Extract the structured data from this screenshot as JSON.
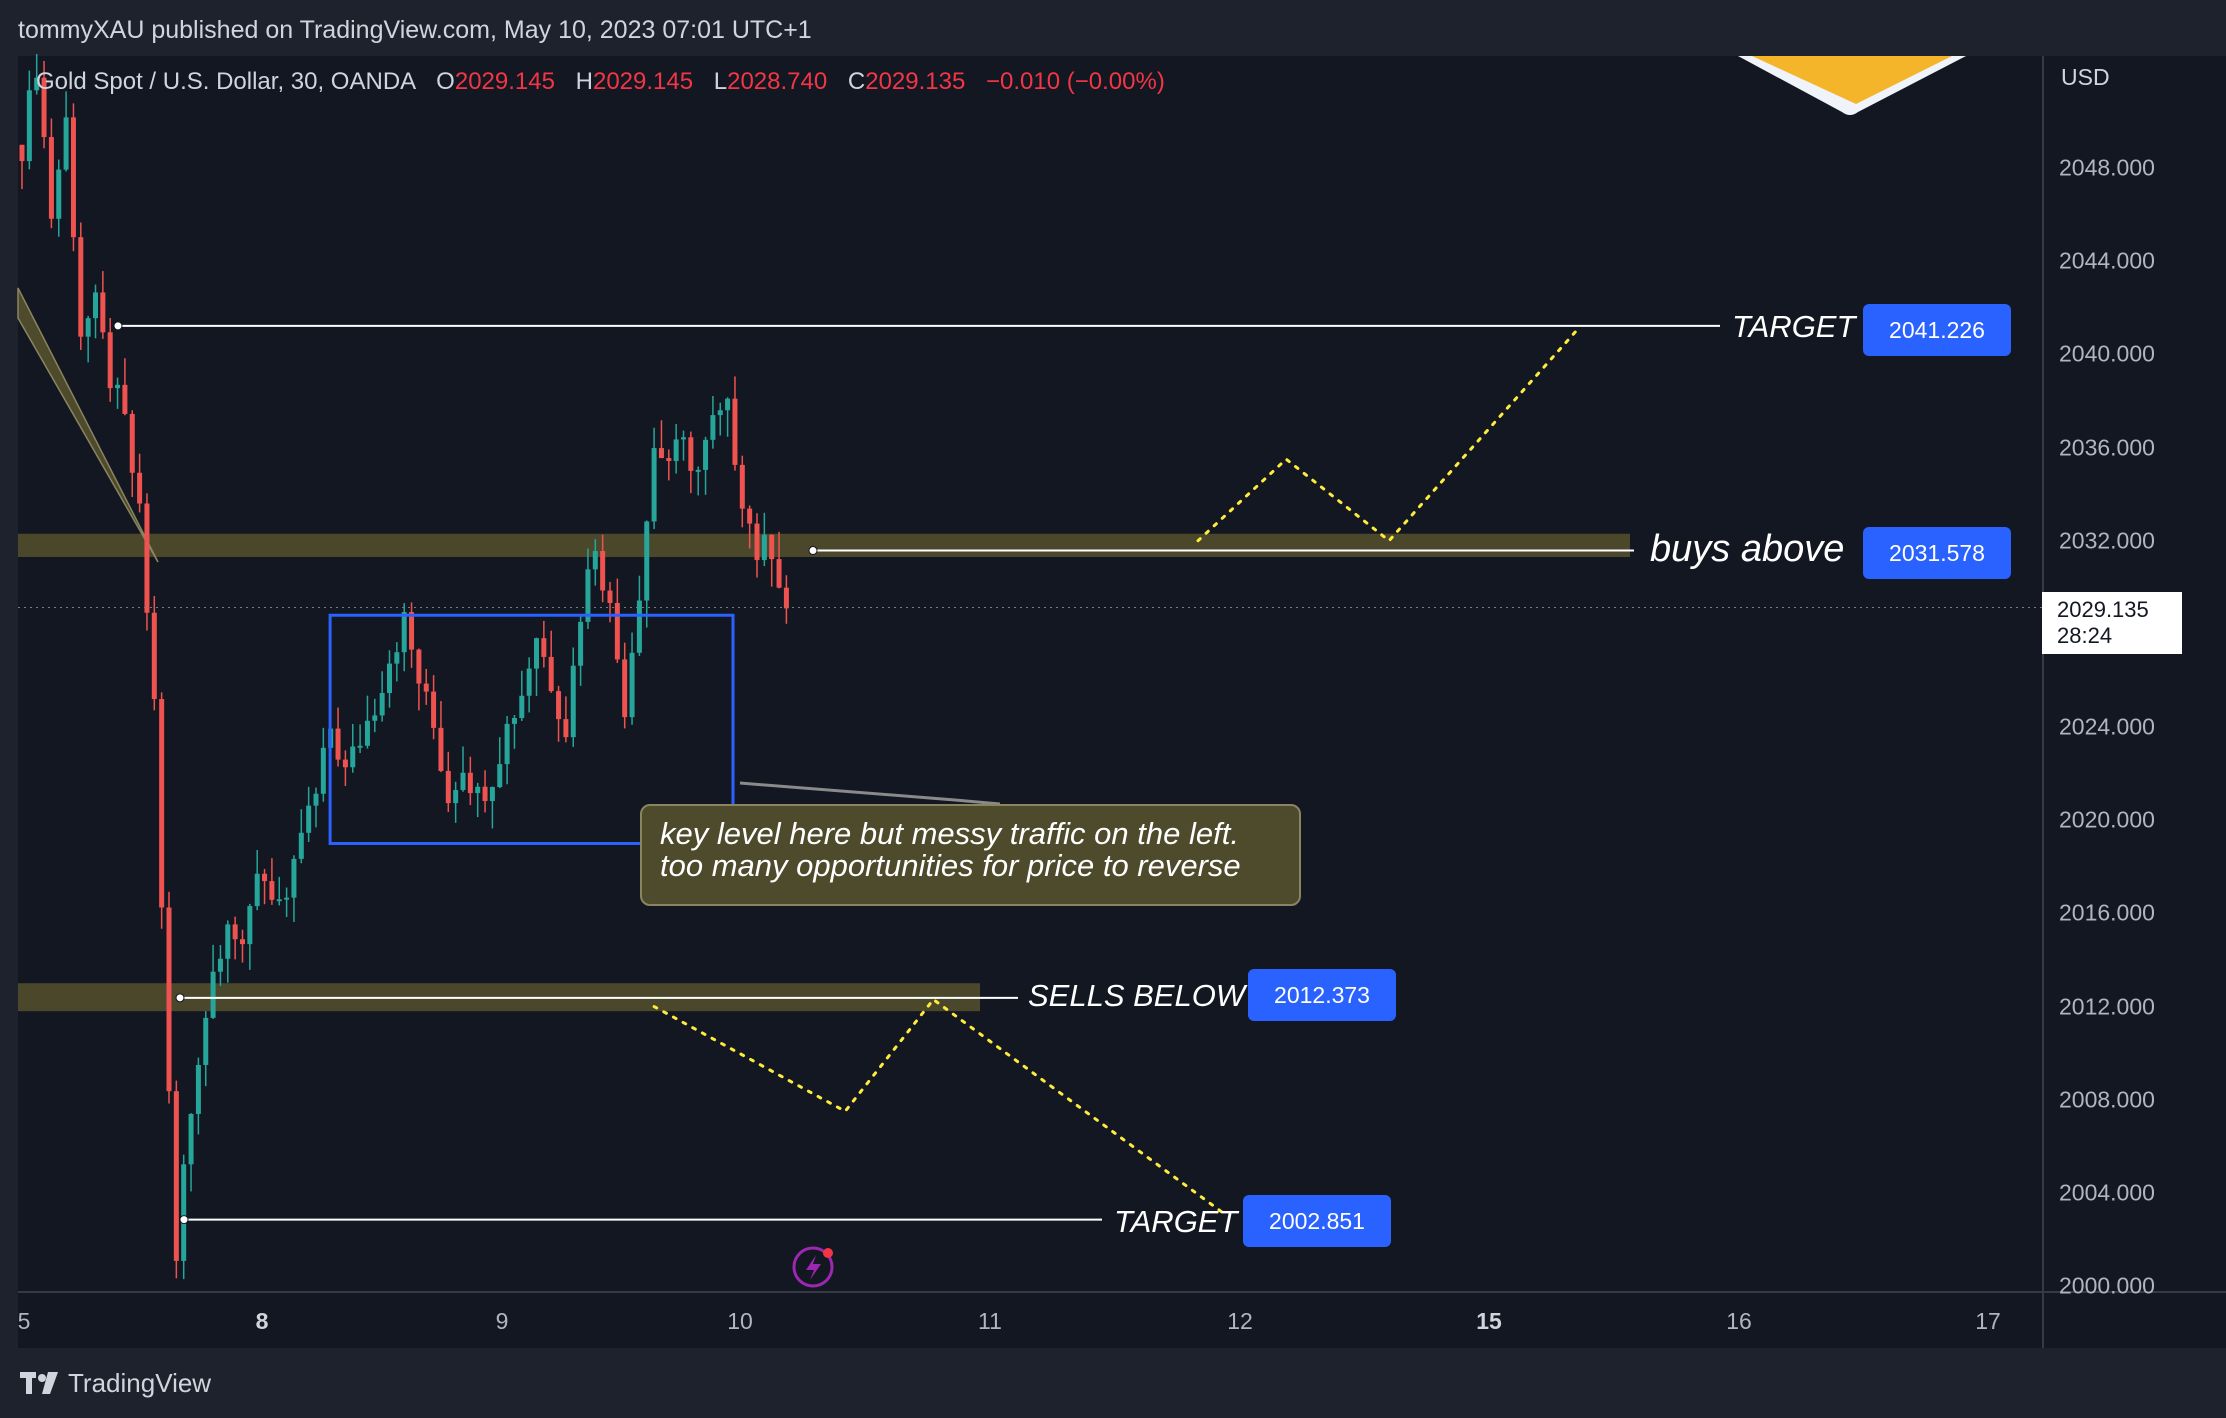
{
  "header": {
    "publisher_line": "tommyXAU published on TradingView.com, May 10, 2023 07:01 UTC+1"
  },
  "legend": {
    "symbol": "Gold Spot / U.S. Dollar, 30, OANDA",
    "open_label": "O",
    "open": "2029.145",
    "high_label": "H",
    "high": "2029.145",
    "low_label": "L",
    "low": "2028.740",
    "close_label": "C",
    "close": "2029.135",
    "change": "−0.010 (−0.00%)"
  },
  "axis": {
    "currency": "USD",
    "current_price": "2029.135",
    "countdown": "28:24"
  },
  "annotations": {
    "target_top_label": "TARGET",
    "target_top_price": "2041.226",
    "buys_label": "buys above",
    "buys_price": "2031.578",
    "sells_label": "SELLS BELOW",
    "sells_price": "2012.373",
    "target_bottom_label": "TARGET",
    "target_bottom_price": "2002.851",
    "note_line1": "key level here but messy traffic on the left.",
    "note_line2": "too many opportunities for price to reverse"
  },
  "footer": {
    "brand": "TradingView"
  },
  "colors": {
    "background": "#131722",
    "up": "#26a69a",
    "down": "#ef5350",
    "zone": "#4e4a2c",
    "range_box": "#2962ff",
    "projection": "#ffeb3b",
    "tag": "#2962ff"
  },
  "chart_data": {
    "type": "candlestick",
    "title": "Gold Spot / U.S. Dollar, 30, OANDA",
    "ylabel": "USD",
    "ylim": [
      2000,
      2053
    ],
    "y_ticks": [
      2000,
      2004,
      2008,
      2012,
      2016,
      2020,
      2024,
      2028,
      2032,
      2036,
      2040,
      2044,
      2048
    ],
    "x_ticks": [
      {
        "label": "5",
        "bold": false
      },
      {
        "label": "8",
        "bold": true
      },
      {
        "label": "9",
        "bold": false
      },
      {
        "label": "10",
        "bold": false
      },
      {
        "label": "11",
        "bold": false
      },
      {
        "label": "12",
        "bold": false
      },
      {
        "label": "15",
        "bold": true
      },
      {
        "label": "16",
        "bold": false
      },
      {
        "label": "17",
        "bold": false
      }
    ],
    "price_path": [
      [
        0,
        2049.0
      ],
      [
        2,
        2052.5
      ],
      [
        4,
        2046.0
      ],
      [
        6,
        2050.0
      ],
      [
        8,
        2041.0
      ],
      [
        10,
        2042.0
      ],
      [
        12,
        2039.0
      ],
      [
        14,
        2037.0
      ],
      [
        16,
        2033.0
      ],
      [
        18,
        2025.0
      ],
      [
        20,
        2008.0
      ],
      [
        21,
        2001.0
      ],
      [
        22,
        2005.0
      ],
      [
        24,
        2010.0
      ],
      [
        26,
        2013.5
      ],
      [
        28,
        2016.0
      ],
      [
        30,
        2014.0
      ],
      [
        32,
        2018.0
      ],
      [
        34,
        2017.0
      ],
      [
        36,
        2016.0
      ],
      [
        38,
        2019.5
      ],
      [
        40,
        2021.0
      ],
      [
        42,
        2024.0
      ],
      [
        44,
        2022.0
      ],
      [
        46,
        2023.5
      ],
      [
        48,
        2025.0
      ],
      [
        50,
        2027.0
      ],
      [
        52,
        2028.5
      ],
      [
        54,
        2026.0
      ],
      [
        56,
        2024.0
      ],
      [
        58,
        2021.0
      ],
      [
        60,
        2022.5
      ],
      [
        62,
        2021.0
      ],
      [
        64,
        2022.0
      ],
      [
        66,
        2024.0
      ],
      [
        68,
        2025.5
      ],
      [
        70,
        2028.0
      ],
      [
        72,
        2026.0
      ],
      [
        74,
        2024.0
      ],
      [
        76,
        2029.0
      ],
      [
        78,
        2032.0
      ],
      [
        80,
        2029.0
      ],
      [
        82,
        2025.0
      ],
      [
        84,
        2030.0
      ],
      [
        86,
        2036.0
      ],
      [
        88,
        2035.5
      ],
      [
        90,
        2036.0
      ],
      [
        92,
        2035.0
      ],
      [
        94,
        2037.0
      ],
      [
        96,
        2037.5
      ],
      [
        98,
        2034.0
      ],
      [
        100,
        2031.5
      ],
      [
        102,
        2031.8
      ],
      [
        104,
        2029.1
      ]
    ],
    "series": [
      {
        "name": "TARGET",
        "values": [
          2041.226
        ]
      },
      {
        "name": "buys above",
        "values": [
          2031.578
        ]
      },
      {
        "name": "SELLS BELOW",
        "values": [
          2012.373
        ]
      },
      {
        "name": "TARGET",
        "values": [
          2002.851
        ]
      }
    ],
    "range_box": {
      "x_from": 46,
      "x_to": 100,
      "y_from": 2019.0,
      "y_to": 2028.8
    },
    "buy_zone": {
      "from": 2031.3,
      "to": 2032.3
    },
    "sell_zone": {
      "from": 2011.8,
      "to": 2013.0
    },
    "long_projection": [
      [
        160,
        2032.0
      ],
      [
        172,
        2035.5
      ],
      [
        186,
        2032.0
      ],
      [
        212,
        2041.2
      ]
    ],
    "short_projection": [
      [
        86,
        2012.0
      ],
      [
        112,
        2007.5
      ],
      [
        124,
        2012.3
      ],
      [
        164,
        2003.0
      ]
    ],
    "grid": false,
    "legend_position": "top-left"
  }
}
